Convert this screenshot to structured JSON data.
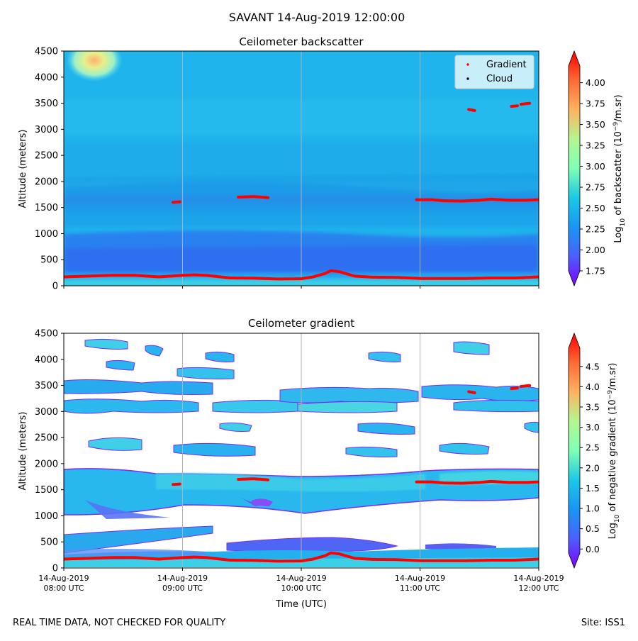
{
  "figure": {
    "suptitle": "SAVANT 14-Aug-2019 12:00:00",
    "footer_left": "REAL TIME DATA, NOT CHECKED FOR QUALITY",
    "footer_right": "Site: ISS1"
  },
  "chart_data": [
    {
      "type": "heatmap",
      "title": "Ceilometer backscatter",
      "ylabel": "Altitude (meters)",
      "xlabel": "",
      "ylim": [
        0,
        4500
      ],
      "yticks": [
        0,
        500,
        1000,
        1500,
        2000,
        2500,
        3000,
        3500,
        4000,
        4500
      ],
      "xlim_hours_utc": [
        8,
        12
      ],
      "xticks": [
        "14-Aug-2019 08:00 UTC",
        "14-Aug-2019 09:00 UTC",
        "14-Aug-2019 10:00 UTC",
        "14-Aug-2019 11:00 UTC",
        "14-Aug-2019 12:00 UTC"
      ],
      "grid": "vertical",
      "colorbar": {
        "label": "Log10 of backscatter (10^-9/m.sr)",
        "label_main": "Log",
        "label_sub": "10",
        "label_rest": " of backscatter (10",
        "label_sup": "−9",
        "label_end": "/m.sr)",
        "range": [
          1.75,
          4.2
        ],
        "ticks": [
          "1.75",
          "2.00",
          "2.25",
          "2.50",
          "2.75",
          "3.00",
          "3.25",
          "3.50",
          "3.75",
          "4.00"
        ],
        "colormap": "rainbow"
      },
      "legend": {
        "placement": "top-right",
        "entries": [
          {
            "name": "Gradient",
            "color": "#ff0000"
          },
          {
            "name": "Cloud",
            "color": "#000000"
          }
        ]
      },
      "series": [
        {
          "name": "Gradient",
          "points_hour_altitude": [
            [
              8.0,
              170
            ],
            [
              8.2,
              185
            ],
            [
              8.4,
              200
            ],
            [
              8.6,
              200
            ],
            [
              8.8,
              170
            ],
            [
              9.0,
              200
            ],
            [
              9.1,
              210
            ],
            [
              9.2,
              200
            ],
            [
              9.4,
              150
            ],
            [
              9.6,
              145
            ],
            [
              9.8,
              130
            ],
            [
              10.0,
              135
            ],
            [
              10.1,
              170
            ],
            [
              10.2,
              235
            ],
            [
              10.25,
              290
            ],
            [
              10.32,
              270
            ],
            [
              10.45,
              185
            ],
            [
              10.6,
              165
            ],
            [
              10.8,
              160
            ],
            [
              11.0,
              140
            ],
            [
              11.2,
              140
            ],
            [
              11.4,
              140
            ],
            [
              11.6,
              150
            ],
            [
              11.8,
              150
            ],
            [
              12.0,
              170
            ]
          ],
          "segments_hour_altitude": [
            [
              [
                8.92,
                1600
              ],
              [
                8.98,
                1610
              ]
            ],
            [
              [
                9.47,
                1700
              ],
              [
                9.6,
                1710
              ],
              [
                9.72,
                1690
              ]
            ],
            [
              [
                10.97,
                1650
              ],
              [
                11.1,
                1650
              ],
              [
                11.2,
                1630
              ],
              [
                11.35,
                1625
              ],
              [
                11.5,
                1640
              ],
              [
                11.6,
                1660
              ],
              [
                11.75,
                1640
              ],
              [
                11.9,
                1640
              ],
              [
                12.0,
                1650
              ]
            ],
            [
              [
                11.41,
                3380
              ],
              [
                11.46,
                3360
              ]
            ],
            [
              [
                11.77,
                3440
              ],
              [
                11.82,
                3450
              ]
            ],
            [
              [
                11.85,
                3480
              ],
              [
                11.93,
                3500
              ]
            ]
          ]
        }
      ]
    },
    {
      "type": "heatmap",
      "title": "Ceilometer gradient",
      "ylabel": "Altitude (meters)",
      "xlabel": "Time (UTC)",
      "ylim": [
        0,
        4500
      ],
      "yticks": [
        0,
        500,
        1000,
        1500,
        2000,
        2500,
        3000,
        3500,
        4000,
        4500
      ],
      "xlim_hours_utc": [
        8,
        12
      ],
      "xticks": [
        "14-Aug-2019 08:00 UTC",
        "14-Aug-2019 09:00 UTC",
        "14-Aug-2019 10:00 UTC",
        "14-Aug-2019 11:00 UTC",
        "14-Aug-2019 12:00 UTC"
      ],
      "xtick_lines": [
        [
          "14-Aug-2019",
          "08:00 UTC"
        ],
        [
          "14-Aug-2019",
          "09:00 UTC"
        ],
        [
          "14-Aug-2019",
          "10:00 UTC"
        ],
        [
          "14-Aug-2019",
          "11:00 UTC"
        ],
        [
          "14-Aug-2019",
          "12:00 UTC"
        ]
      ],
      "grid": "vertical",
      "colorbar": {
        "label": "Log10 of negative gradient (10^-9/m.sr)",
        "label_main": "Log",
        "label_sub": "10",
        "label_rest": " of negative gradient (10",
        "label_sup": "−9",
        "label_end": "/m.sr)",
        "range": [
          -0.1,
          4.95
        ],
        "ticks": [
          "0.0",
          "0.5",
          "1.0",
          "1.5",
          "2.0",
          "2.5",
          "3.0",
          "3.5",
          "4.0",
          "4.5"
        ],
        "colormap": "rainbow"
      }
    }
  ]
}
